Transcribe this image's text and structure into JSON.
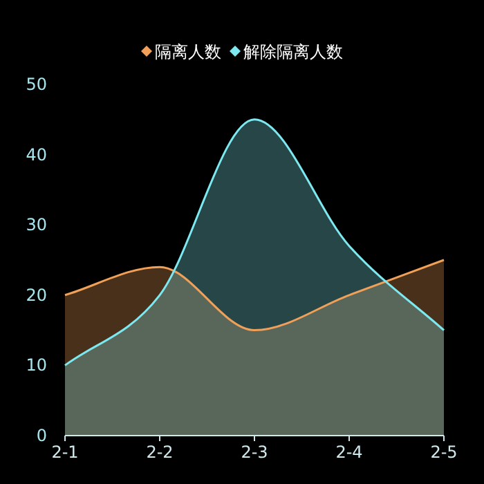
{
  "chart_data": {
    "type": "area",
    "categories": [
      "2-1",
      "2-2",
      "2-3",
      "2-4",
      "2-5"
    ],
    "series": [
      {
        "name": "隔离人数",
        "color": "#f0a058",
        "values": [
          20,
          24,
          15,
          20,
          25
        ]
      },
      {
        "name": "解除隔离人数",
        "color": "#7de8f0",
        "values": [
          10,
          20,
          45,
          27,
          15
        ]
      }
    ],
    "ylim": [
      0,
      50
    ],
    "yticks": [
      0,
      10,
      20,
      30,
      40,
      50
    ],
    "grid": false,
    "legend": "top",
    "marker": "none"
  }
}
